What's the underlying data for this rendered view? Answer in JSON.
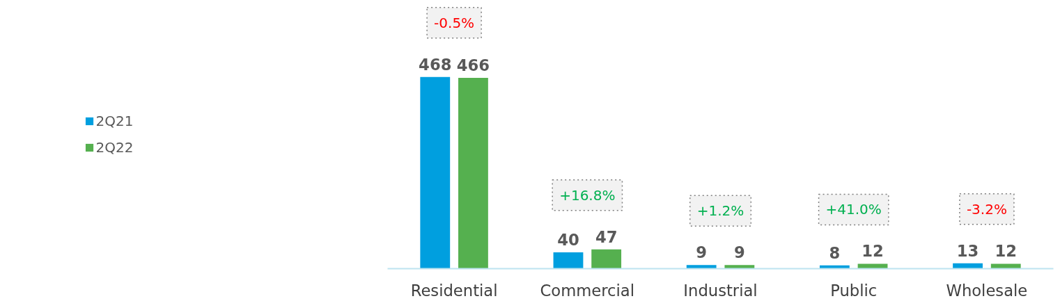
{
  "chart_data": {
    "type": "bar",
    "categories": [
      "Residential",
      "Commercial",
      "Industrial",
      "Public",
      "Wholesale"
    ],
    "series": [
      {
        "name": "2Q21",
        "color": "#009fdf",
        "values": [
          468,
          40,
          9,
          8,
          13
        ]
      },
      {
        "name": "2Q22",
        "color": "#55b04f",
        "values": [
          466,
          47,
          9,
          12,
          12
        ]
      }
    ],
    "data_labels": true,
    "legend": "left",
    "grid": false,
    "annotations": [
      "-0.5%",
      "+16.8%",
      "+1.2%",
      "+41.0%",
      "-3.2%"
    ]
  }
}
